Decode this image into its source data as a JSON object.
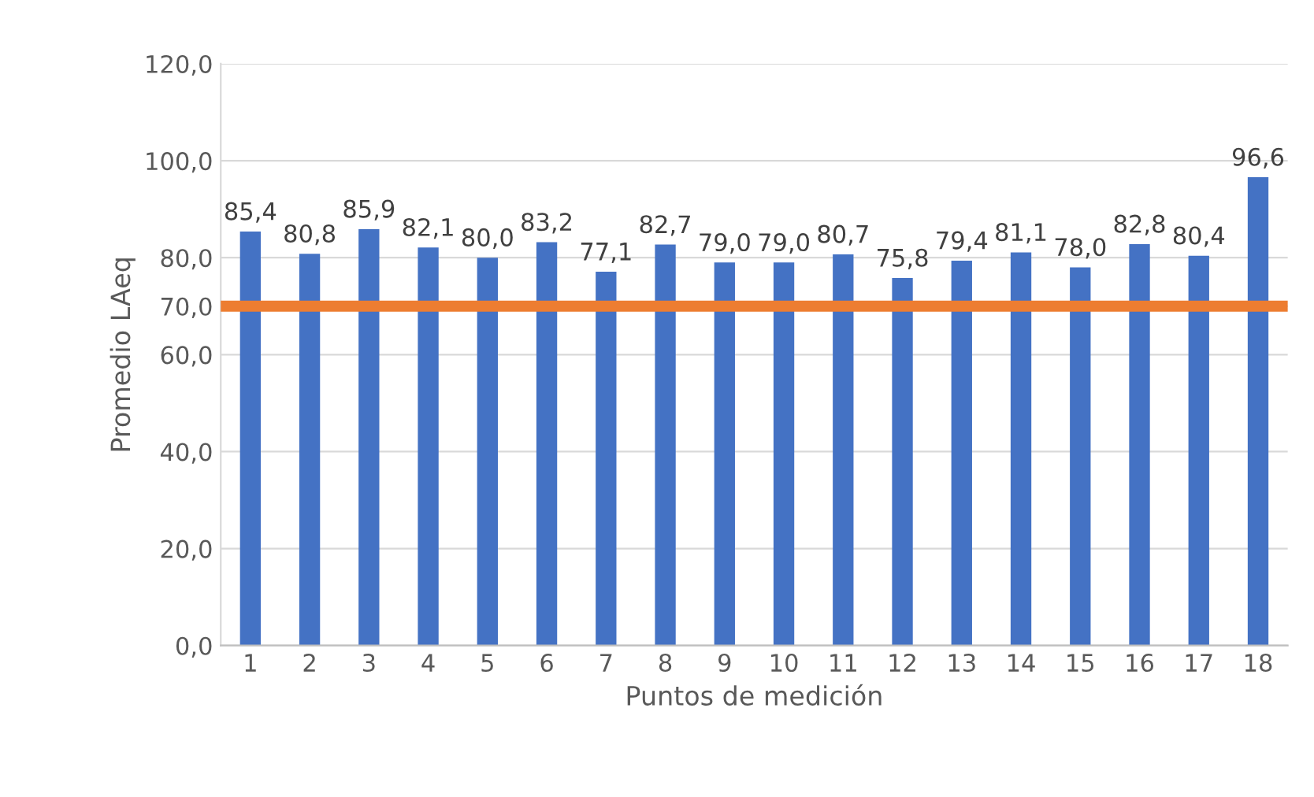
{
  "chart_data": {
    "type": "bar",
    "xlabel": "Puntos de medición",
    "ylabel": "Promedio LAeq",
    "categories": [
      "1",
      "2",
      "3",
      "4",
      "5",
      "6",
      "7",
      "8",
      "9",
      "10",
      "11",
      "12",
      "13",
      "14",
      "15",
      "16",
      "17",
      "18"
    ],
    "values": [
      85.4,
      80.8,
      85.9,
      82.1,
      80.0,
      83.2,
      77.1,
      82.7,
      79.0,
      79.0,
      80.7,
      75.8,
      79.4,
      81.1,
      78.0,
      82.8,
      80.4,
      96.6
    ],
    "value_labels": [
      "85,4",
      "80,8",
      "85,9",
      "82,1",
      "80,0",
      "83,2",
      "77,1",
      "82,7",
      "79,0",
      "79,0",
      "80,7",
      "75,8",
      "79,4",
      "81,1",
      "78,0",
      "82,8",
      "80,4",
      "96,6"
    ],
    "color": "#4472c4",
    "ylim": [
      0,
      120
    ],
    "yticks": [
      {
        "value": 0,
        "label": "0,0"
      },
      {
        "value": 20,
        "label": "20,0"
      },
      {
        "value": 40,
        "label": "40,0"
      },
      {
        "value": 60,
        "label": "60,0"
      },
      {
        "value": 70,
        "label": "70,0"
      },
      {
        "value": 80,
        "label": "80,0"
      },
      {
        "value": 100,
        "label": "100,0"
      },
      {
        "value": 120,
        "label": "120,0"
      }
    ],
    "ref_lines": [
      {
        "axis": "y",
        "value": 70,
        "color": "#ed7d31"
      }
    ],
    "grid": "y"
  }
}
